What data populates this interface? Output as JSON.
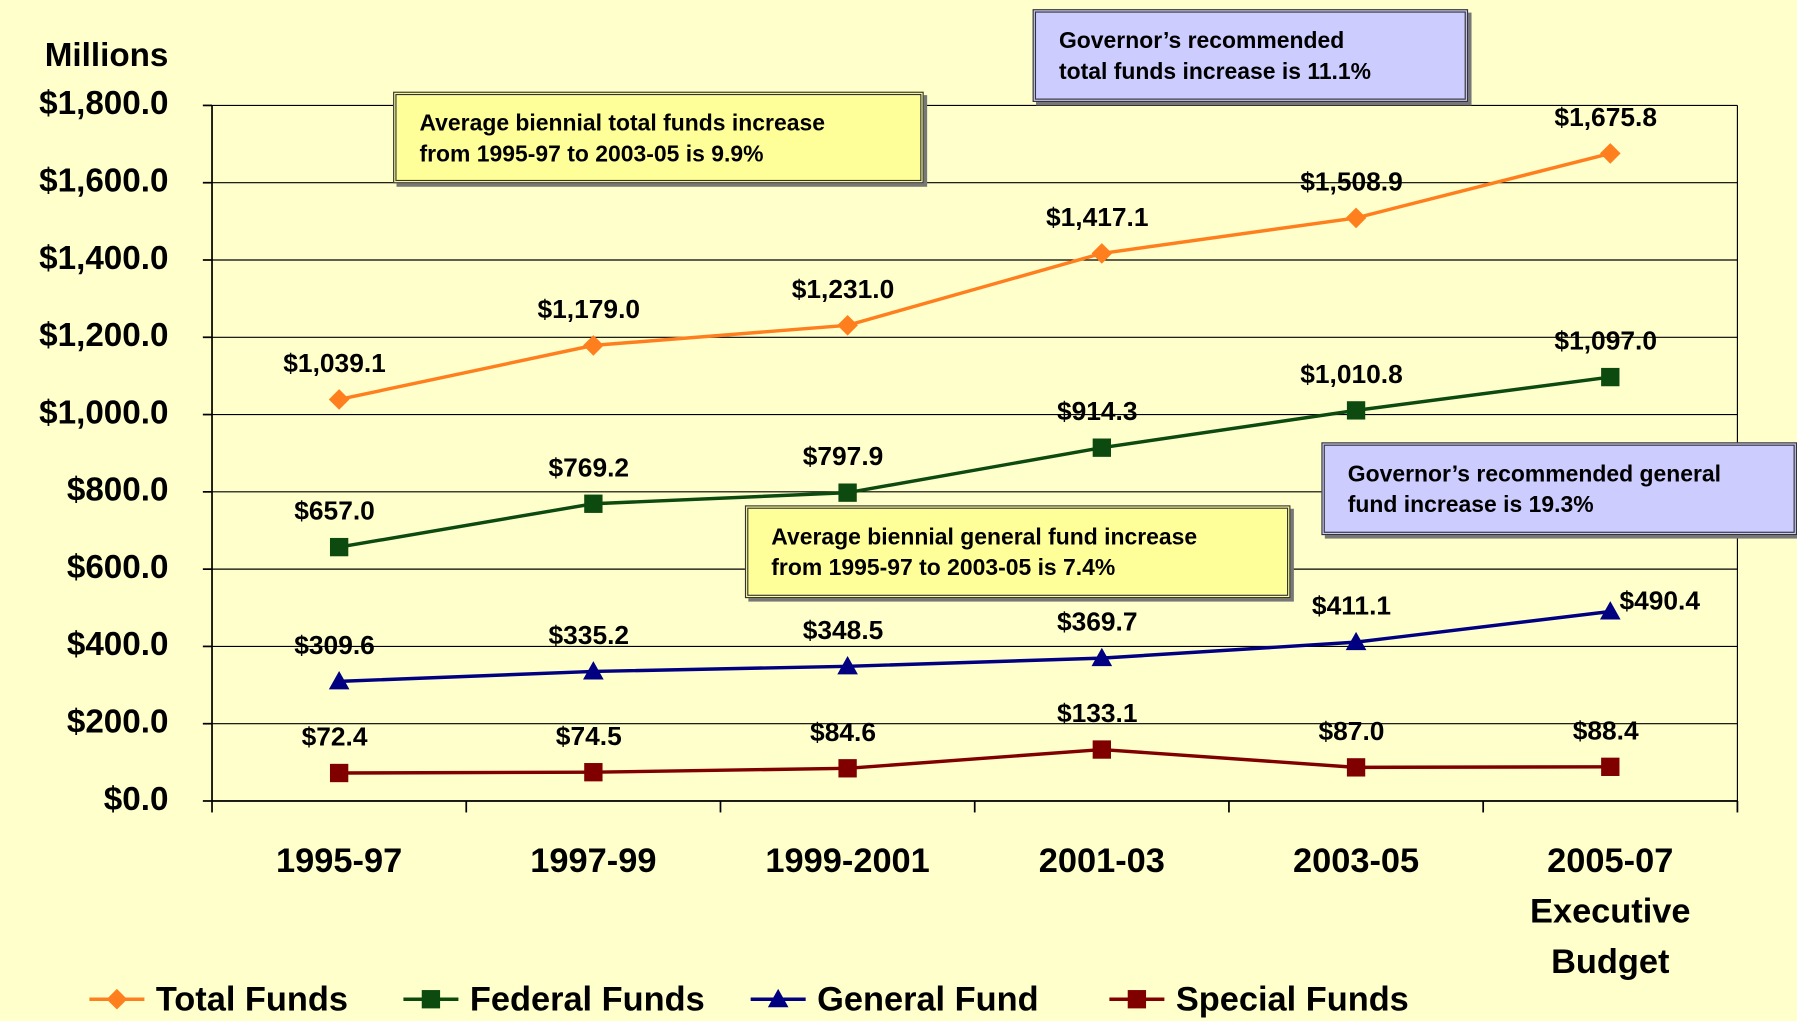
{
  "chart_data": {
    "type": "line",
    "y_label": "Millions",
    "categories": [
      "1995-97",
      "1997-99",
      "1999-2001",
      "2001-03",
      "2003-05",
      "2005-07 Executive Budget"
    ],
    "series": [
      {
        "name": "Total Funds",
        "color": "#ff7f1e",
        "marker": "diamond",
        "values": [
          1039.1,
          1179.0,
          1231.0,
          1417.1,
          1508.9,
          1675.8
        ],
        "value_labels": [
          "$1,039.1",
          "$1,179.0",
          "$1,231.0",
          "$1,417.1",
          "$1,508.9",
          "$1,675.8"
        ]
      },
      {
        "name": "Federal Funds",
        "color": "#0c4a10",
        "marker": "square",
        "values": [
          657.0,
          769.2,
          797.9,
          914.3,
          1010.8,
          1097.0
        ],
        "value_labels": [
          "$657.0",
          "$769.2",
          "$797.9",
          "$914.3",
          "$1,010.8",
          "$1,097.0"
        ]
      },
      {
        "name": "General Fund",
        "color": "#000080",
        "marker": "triangle",
        "values": [
          309.6,
          335.2,
          348.5,
          369.7,
          411.1,
          490.4
        ],
        "value_labels": [
          "$309.6",
          "$335.2",
          "$348.5",
          "$369.7",
          "$411.1",
          "$490.4"
        ]
      },
      {
        "name": "Special Funds",
        "color": "#800000",
        "marker": "square",
        "values": [
          72.4,
          74.5,
          84.6,
          133.1,
          87.0,
          88.4
        ],
        "value_labels": [
          "$72.4",
          "$74.5",
          "$84.6",
          "$133.1",
          "$87.0",
          "$88.4"
        ]
      }
    ],
    "ylim": [
      0,
      1800
    ],
    "yticks": [
      {
        "value": 0,
        "label": "$0.0"
      },
      {
        "value": 200,
        "label": "$200.0"
      },
      {
        "value": 400,
        "label": "$400.0"
      },
      {
        "value": 600,
        "label": "$600.0"
      },
      {
        "value": 800,
        "label": "$800.0"
      },
      {
        "value": 1000,
        "label": "$1,000.0"
      },
      {
        "value": 1200,
        "label": "$1,200.0"
      },
      {
        "value": 1400,
        "label": "$1,400.0"
      },
      {
        "value": 1600,
        "label": "$1,600.0"
      },
      {
        "value": 1800,
        "label": "$1,800.0"
      }
    ],
    "grid": true,
    "legend": "bottom",
    "annotations": [
      {
        "lines": [
          "Average biennial total funds increase",
          "from 1995-97 to 2003-05 is 9.9%"
        ],
        "color": "#ffff99"
      },
      {
        "lines": [
          "Governor’s recommended",
          "total funds increase is 11.1%"
        ],
        "color": "#ccccff"
      },
      {
        "lines": [
          "Average biennial general fund increase",
          "from 1995-97 to 2003-05 is 7.4%"
        ],
        "color": "#ffff99"
      },
      {
        "lines": [
          "Governor’s recommended general",
          "fund increase is 19.3%"
        ],
        "color": "#ccccff"
      }
    ]
  }
}
